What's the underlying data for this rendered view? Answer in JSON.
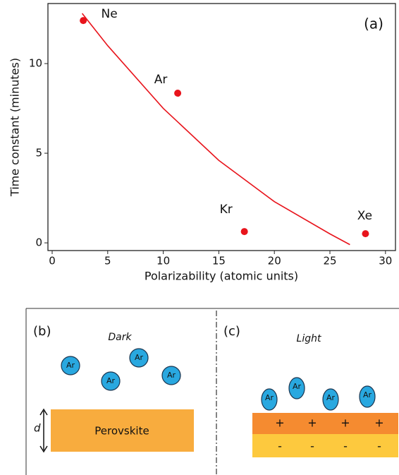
{
  "chart_data": {
    "type": "scatter",
    "x_label": "Polarizability (atomic units)",
    "y_label": "Time constant (minutes)",
    "annotation": "(a)",
    "x": [
      2.8,
      11.3,
      17.3,
      28.2
    ],
    "values": [
      12.4,
      8.35,
      0.63,
      0.51
    ],
    "point_labels": [
      "Ne",
      "Ar",
      "Kr",
      "Xe"
    ],
    "color": "#e8141c",
    "fit": {
      "type": "line",
      "x": [
        2.7,
        5,
        10,
        15,
        20,
        25,
        26.8
      ],
      "values": [
        12.8,
        11.0,
        7.5,
        4.6,
        2.3,
        0.5,
        -0.1
      ],
      "color": "#e8141c"
    },
    "xlim": [
      -0.38,
      30.9
    ],
    "xticks": [
      0,
      5,
      10,
      15,
      20,
      25,
      30
    ],
    "ylim": [
      -0.43,
      13.35
    ],
    "yticks": [
      0,
      5,
      10
    ]
  },
  "diagram": {
    "panels": [
      {
        "label": "(b)",
        "condition": "Dark",
        "atoms": [
          "Ar",
          "Ar",
          "Ar",
          "Ar"
        ],
        "dimension": "d",
        "layer": "Perovskite"
      },
      {
        "label": "(c)",
        "condition": "Light",
        "atoms": [
          "Ar",
          "Ar",
          "Ar",
          "Ar"
        ],
        "charges": [
          "+",
          "+",
          "+",
          "+",
          "-",
          "-",
          "-",
          "-"
        ]
      }
    ]
  }
}
